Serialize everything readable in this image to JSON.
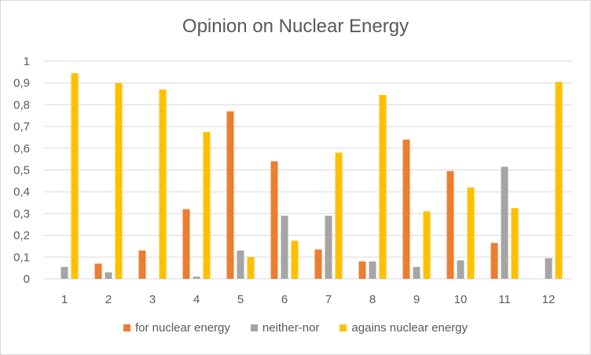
{
  "chart_data": {
    "type": "bar",
    "title": "Opinion on Nuclear Energy",
    "categories": [
      "1",
      "2",
      "3",
      "4",
      "5",
      "6",
      "7",
      "8",
      "9",
      "10",
      "11",
      "12"
    ],
    "series": [
      {
        "name": "for nuclear energy",
        "color": "#ED7D31",
        "values": [
          0,
          0.07,
          0.13,
          0.32,
          0.77,
          0.54,
          0.135,
          0.08,
          0.64,
          0.495,
          0.165,
          0
        ]
      },
      {
        "name": "neither-nor",
        "color": "#A5A5A5",
        "values": [
          0.055,
          0.03,
          0,
          0.01,
          0.13,
          0.29,
          0.29,
          0.08,
          0.055,
          0.085,
          0.515,
          0.095
        ]
      },
      {
        "name": "agains nuclear energy",
        "color": "#FFC000",
        "values": [
          0.945,
          0.9,
          0.87,
          0.675,
          0.1,
          0.175,
          0.58,
          0.845,
          0.31,
          0.42,
          0.325,
          0.905
        ]
      }
    ],
    "yticks": [
      "0",
      "0,1",
      "0,2",
      "0,3",
      "0,4",
      "0,5",
      "0,6",
      "0,7",
      "0,8",
      "0,9",
      "1"
    ],
    "ylim": [
      0,
      1
    ],
    "grid": true,
    "legend_position": "bottom"
  }
}
